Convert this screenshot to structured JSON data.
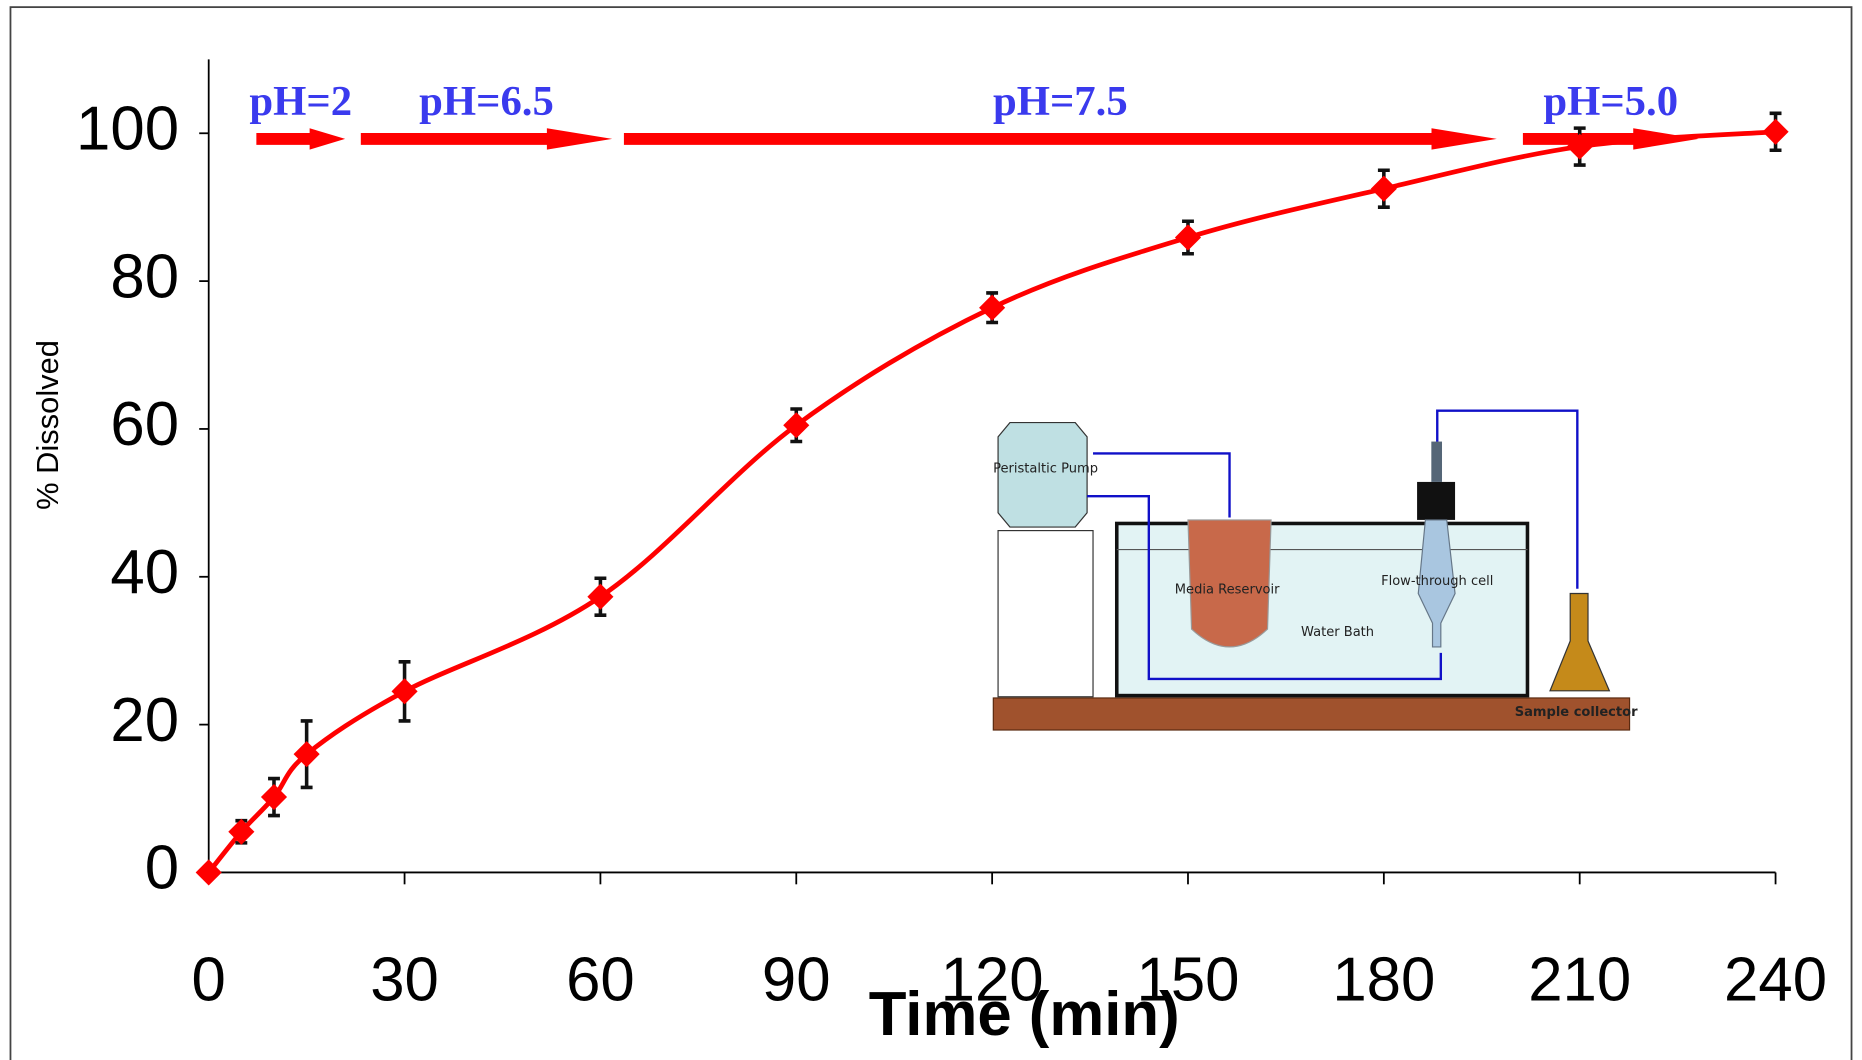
{
  "chart_data": {
    "type": "line",
    "xlabel": "Time (min)",
    "ylabel": "% Dissolved",
    "x": [
      0,
      5,
      10,
      15,
      30,
      60,
      90,
      120,
      150,
      180,
      210,
      240
    ],
    "series": [
      {
        "name": "% Dissolved",
        "color": "#ff0000",
        "values": [
          0,
          5.5,
          10.2,
          16,
          24.5,
          37.3,
          60.5,
          76.4,
          85.9,
          92.5,
          98.2,
          100.2
        ],
        "errors": [
          0,
          1.5,
          2.5,
          4.5,
          4,
          2.5,
          2.2,
          2,
          2.2,
          2.5,
          2.5,
          2.5
        ]
      }
    ],
    "xlim": [
      0,
      240
    ],
    "xticks": [
      0,
      30,
      60,
      90,
      120,
      150,
      180,
      210,
      240
    ],
    "ylim": [
      0,
      110
    ],
    "yticks": [
      0,
      20,
      40,
      60,
      80,
      100
    ],
    "phases": [
      {
        "label": "pH=2",
        "start": 7.3,
        "end": 20.9
      },
      {
        "label": "pH=6.5",
        "start": 23.3,
        "end": 61.8
      },
      {
        "label": "pH=7.5",
        "start": 63.6,
        "end": 197.3
      },
      {
        "label": "pH=5.0",
        "start": 201.3,
        "end": 228.2
      }
    ],
    "phase_color": "#ff0000",
    "inset": {
      "pump": "Peristaltic Pump",
      "reservoir": "Media Reservoir",
      "cell": "Flow-through cell",
      "bath": "Water Bath",
      "collector": "Sample collector"
    }
  }
}
